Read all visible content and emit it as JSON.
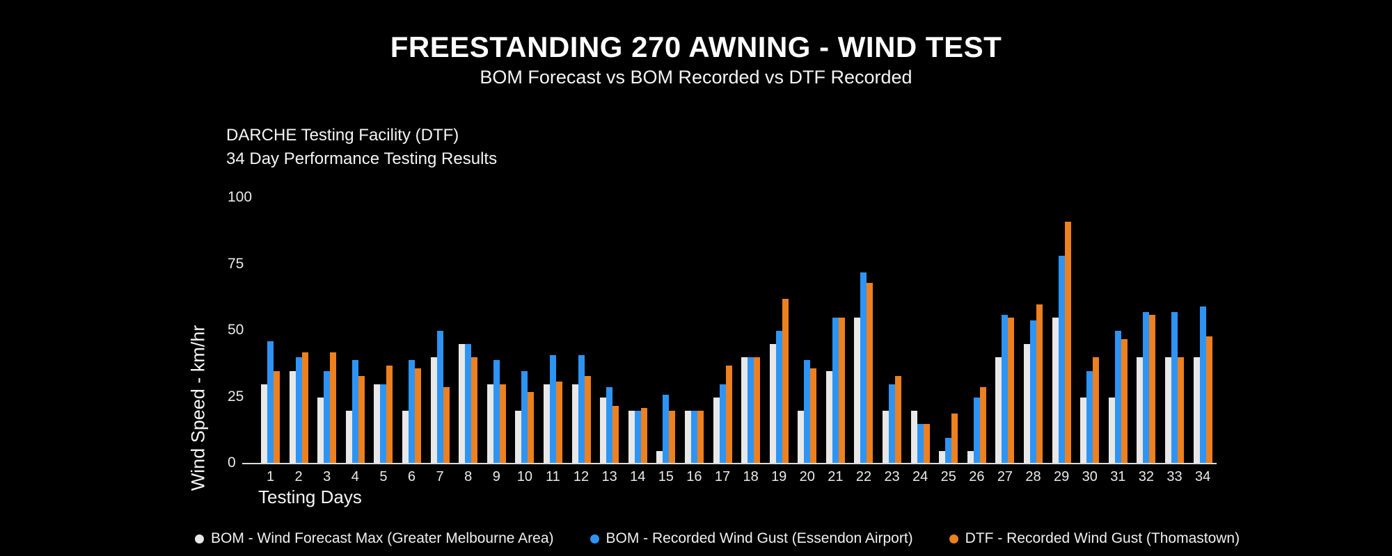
{
  "header": {
    "title": "FREESTANDING 270 AWNING - WIND TEST",
    "subtitle": "BOM Forecast vs BOM Recorded vs DTF Recorded"
  },
  "annotation": {
    "line1": "DARCHE Testing Facility (DTF)",
    "line2": "34 Day Performance Testing Results"
  },
  "colors": {
    "background": "#000000",
    "axis_line": "#dcdcdc",
    "forecast_white": "#e8e8e8",
    "recorded_blue": "#2e94f4",
    "recorded_orange": "#ed801f"
  },
  "chart_data": {
    "type": "bar",
    "title": "FREESTANDING 270 AWNING - WIND TEST",
    "subtitle": "BOM Forecast vs BOM Recorded vs DTF Recorded",
    "xlabel": "Testing Days",
    "ylabel": "Wind Speed - km/hr",
    "ylim": [
      0,
      100
    ],
    "yticks": [
      0,
      25,
      50,
      75,
      100
    ],
    "grid": false,
    "legend_position": "bottom",
    "categories": [
      1,
      2,
      3,
      4,
      5,
      6,
      7,
      8,
      9,
      10,
      11,
      12,
      13,
      14,
      15,
      16,
      17,
      18,
      19,
      20,
      21,
      22,
      23,
      24,
      25,
      26,
      27,
      28,
      29,
      30,
      31,
      32,
      33,
      34
    ],
    "series": [
      {
        "name": "BOM - Wind Forecast Max (Greater Melbourne Area)",
        "color": "#e8e8e8",
        "values": [
          30,
          35,
          25,
          20,
          30,
          20,
          40,
          45,
          30,
          20,
          30,
          30,
          25,
          20,
          5,
          20,
          25,
          40,
          45,
          20,
          35,
          55,
          20,
          20,
          5,
          5,
          40,
          45,
          55,
          25,
          25,
          40,
          40,
          40
        ]
      },
      {
        "name": "BOM - Recorded Wind Gust (Essendon Airport)",
        "color": "#2e94f4",
        "values": [
          46,
          40,
          35,
          39,
          30,
          39,
          50,
          45,
          39,
          35,
          41,
          41,
          29,
          20,
          26,
          20,
          30,
          40,
          50,
          39,
          55,
          72,
          30,
          15,
          10,
          25,
          56,
          54,
          78,
          35,
          50,
          57,
          57,
          59
        ]
      },
      {
        "name": "DTF - Recorded Wind Gust (Thomastown)",
        "color": "#ed801f",
        "values": [
          35,
          42,
          42,
          33,
          37,
          36,
          29,
          40,
          30,
          27,
          31,
          33,
          22,
          21,
          20,
          20,
          37,
          40,
          62,
          36,
          55,
          68,
          33,
          15,
          19,
          29,
          55,
          60,
          91,
          40,
          47,
          56,
          40,
          48
        ]
      }
    ]
  }
}
